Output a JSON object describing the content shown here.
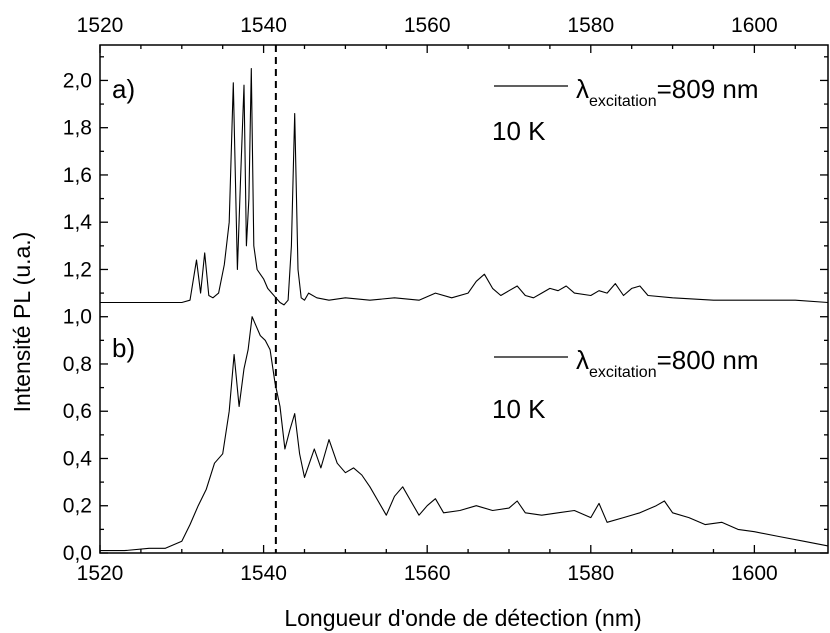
{
  "chart_data": {
    "type": "line",
    "xlabel": "Longueur d'onde de détection (nm)",
    "ylabel": "Intensité PL (u.a.)",
    "xlim": [
      1520,
      1609
    ],
    "ylim": [
      0.0,
      2.15
    ],
    "x_ticks": [
      "1520",
      "1540",
      "1560",
      "1580",
      "1600"
    ],
    "y_ticks": [
      "0,0",
      "0,2",
      "0,4",
      "0,6",
      "0,8",
      "1,0",
      "1,2",
      "1,4",
      "1,6",
      "1,8",
      "2,0"
    ],
    "vline_x": 1541.5,
    "panels": [
      {
        "label": "a)",
        "legend_symbol": "λ",
        "legend_sub": "excitation",
        "legend_value": "=809 nm",
        "temperature": "10 K"
      },
      {
        "label": "b)",
        "legend_symbol": "λ",
        "legend_sub": "excitation",
        "legend_value": "=800 nm",
        "temperature": "10 K"
      }
    ],
    "series": [
      {
        "x": [
          1520,
          1525,
          1528,
          1530,
          1531,
          1531.8,
          1532.3,
          1532.8,
          1533.3,
          1533.8,
          1534.5,
          1535.2,
          1535.8,
          1536.3,
          1536.8,
          1537.2,
          1537.6,
          1537.9,
          1538.2,
          1538.5,
          1538.8,
          1539.2,
          1539.6,
          1540.0,
          1540.5,
          1541.0,
          1541.5,
          1542.0,
          1542.5,
          1543.0,
          1543.4,
          1543.8,
          1544.2,
          1544.6,
          1545.0,
          1545.5,
          1546.5,
          1548,
          1550,
          1553,
          1556,
          1559,
          1561,
          1563,
          1565,
          1566,
          1567,
          1568,
          1569,
          1570,
          1571,
          1572,
          1573,
          1574,
          1575,
          1576,
          1577,
          1578,
          1580,
          1581,
          1582,
          1583,
          1584,
          1585,
          1586,
          1587,
          1590,
          1595,
          1600,
          1605,
          1609
        ],
        "values": [
          1.06,
          1.06,
          1.06,
          1.06,
          1.07,
          1.24,
          1.1,
          1.27,
          1.09,
          1.08,
          1.1,
          1.22,
          1.4,
          1.99,
          1.2,
          1.6,
          1.98,
          1.3,
          1.5,
          2.05,
          1.3,
          1.2,
          1.18,
          1.16,
          1.12,
          1.1,
          1.08,
          1.06,
          1.05,
          1.07,
          1.3,
          1.86,
          1.2,
          1.08,
          1.07,
          1.1,
          1.08,
          1.07,
          1.08,
          1.07,
          1.08,
          1.07,
          1.1,
          1.08,
          1.1,
          1.15,
          1.18,
          1.12,
          1.09,
          1.11,
          1.13,
          1.09,
          1.08,
          1.1,
          1.12,
          1.11,
          1.13,
          1.1,
          1.09,
          1.11,
          1.1,
          1.14,
          1.09,
          1.12,
          1.13,
          1.09,
          1.08,
          1.07,
          1.07,
          1.07,
          1.06
        ]
      },
      {
        "x": [
          1520,
          1523,
          1526,
          1528,
          1530,
          1531,
          1532,
          1533,
          1534,
          1535,
          1535.8,
          1536.4,
          1537,
          1537.6,
          1538.1,
          1538.6,
          1539.1,
          1539.6,
          1540.2,
          1540.8,
          1541.4,
          1542,
          1542.6,
          1543.2,
          1543.8,
          1544.4,
          1545,
          1545.6,
          1546.2,
          1547,
          1548,
          1549,
          1550,
          1551,
          1552,
          1553,
          1554,
          1555,
          1556,
          1557,
          1558,
          1559,
          1560,
          1561,
          1562,
          1564,
          1566,
          1568,
          1570,
          1571,
          1572,
          1574,
          1576,
          1578,
          1580,
          1581,
          1582,
          1584,
          1586,
          1588,
          1589,
          1590,
          1592,
          1594,
          1596,
          1598,
          1600,
          1603,
          1606,
          1609
        ],
        "values": [
          0.01,
          0.01,
          0.02,
          0.02,
          0.05,
          0.12,
          0.2,
          0.27,
          0.38,
          0.42,
          0.6,
          0.84,
          0.62,
          0.78,
          0.86,
          1.0,
          0.96,
          0.92,
          0.9,
          0.86,
          0.72,
          0.62,
          0.44,
          0.52,
          0.59,
          0.42,
          0.32,
          0.38,
          0.44,
          0.36,
          0.48,
          0.38,
          0.34,
          0.36,
          0.33,
          0.28,
          0.22,
          0.16,
          0.24,
          0.28,
          0.22,
          0.16,
          0.2,
          0.23,
          0.17,
          0.18,
          0.2,
          0.18,
          0.19,
          0.22,
          0.17,
          0.16,
          0.17,
          0.18,
          0.15,
          0.21,
          0.13,
          0.15,
          0.17,
          0.2,
          0.22,
          0.17,
          0.15,
          0.12,
          0.13,
          0.1,
          0.09,
          0.07,
          0.05,
          0.03
        ]
      }
    ]
  }
}
